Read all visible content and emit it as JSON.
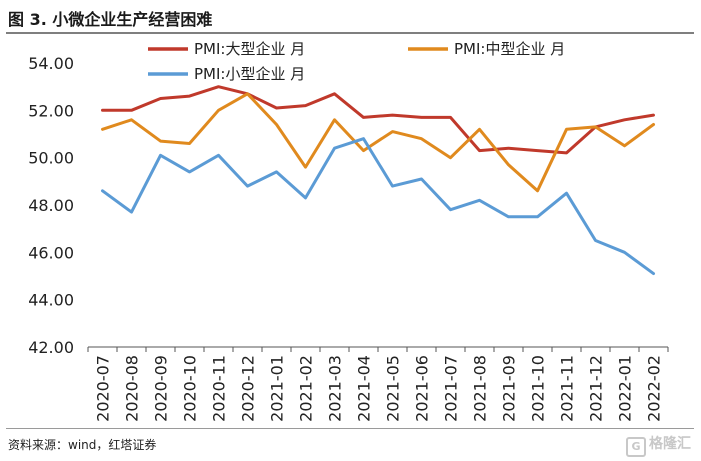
{
  "header": {
    "title": "图 3. 小微企业生产经营困难"
  },
  "footer": {
    "source": "资料来源：wind，红塔证券",
    "watermark": "格隆汇",
    "watermark_glyph": "G"
  },
  "chart_data": {
    "type": "line",
    "title": "图 3. 小微企业生产经营困难",
    "xlabel": "",
    "ylabel": "",
    "ylim": [
      42,
      54
    ],
    "yticks": [
      "42.00",
      "44.00",
      "46.00",
      "48.00",
      "50.00",
      "52.00",
      "54.00"
    ],
    "grid": false,
    "legend_position": "top",
    "categories": [
      "2020-07",
      "2020-08",
      "2020-09",
      "2020-10",
      "2020-11",
      "2020-12",
      "2021-01",
      "2021-02",
      "2021-03",
      "2021-04",
      "2021-05",
      "2021-06",
      "2021-07",
      "2021-08",
      "2021-09",
      "2021-10",
      "2021-11",
      "2021-12",
      "2022-01",
      "2022-02"
    ],
    "series": [
      {
        "name": "PMI:大型企业 月",
        "color": "#c0392b",
        "values": [
          52.0,
          52.0,
          52.5,
          52.6,
          53.0,
          52.7,
          52.1,
          52.2,
          52.7,
          51.7,
          51.8,
          51.7,
          51.7,
          50.3,
          50.4,
          50.3,
          50.2,
          51.3,
          51.6,
          51.8
        ]
      },
      {
        "name": "PMI:中型企业 月",
        "color": "#e08a1e",
        "values": [
          51.2,
          51.6,
          50.7,
          50.6,
          52.0,
          52.7,
          51.4,
          49.6,
          51.6,
          50.3,
          51.1,
          50.8,
          50.0,
          51.2,
          49.7,
          48.6,
          51.2,
          51.3,
          50.5,
          51.4
        ]
      },
      {
        "name": "PMI:小型企业 月",
        "color": "#5b9bd5",
        "values": [
          48.6,
          47.7,
          50.1,
          49.4,
          50.1,
          48.8,
          49.4,
          48.3,
          50.4,
          50.8,
          48.8,
          49.1,
          47.8,
          48.2,
          47.5,
          47.5,
          48.5,
          46.5,
          46.0,
          45.1
        ]
      }
    ]
  }
}
